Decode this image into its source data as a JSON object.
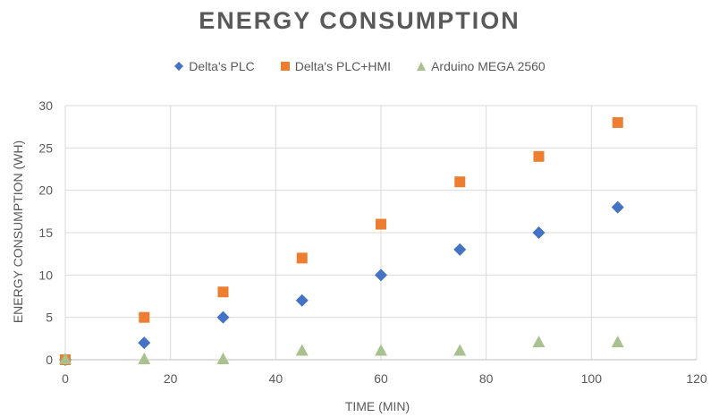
{
  "chart_data": {
    "type": "scatter",
    "title": "ENERGY CONSUMPTION",
    "xlabel": "TIME (MIN)",
    "ylabel": "ENERGY CONSUMPTION (WH)",
    "xlim": [
      0,
      120
    ],
    "ylim": [
      0,
      30
    ],
    "xticks": [
      0,
      20,
      40,
      60,
      80,
      100,
      120
    ],
    "yticks": [
      0,
      5,
      10,
      15,
      20,
      25,
      30
    ],
    "grid": true,
    "legend_position": "top",
    "series": [
      {
        "name": "Delta's PLC",
        "marker": "diamond",
        "color": "#4472C4",
        "x": [
          0,
          15,
          30,
          45,
          60,
          75,
          90,
          105
        ],
        "y": [
          0,
          2,
          5,
          7,
          10,
          13,
          15,
          18
        ]
      },
      {
        "name": "Delta's PLC+HMI",
        "marker": "square",
        "color": "#ED7D31",
        "x": [
          0,
          15,
          30,
          45,
          60,
          75,
          90,
          105
        ],
        "y": [
          0,
          5,
          8,
          12,
          16,
          21,
          24,
          28
        ]
      },
      {
        "name": "Arduino MEGA 2560",
        "marker": "triangle",
        "color": "#A9C18E",
        "x": [
          0,
          15,
          30,
          45,
          60,
          75,
          90,
          105
        ],
        "y": [
          0,
          0,
          0,
          1,
          1,
          1,
          2,
          2
        ]
      }
    ]
  }
}
